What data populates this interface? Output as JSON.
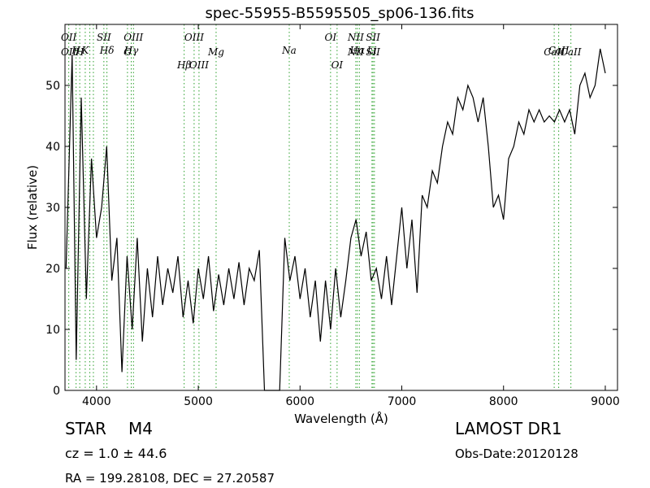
{
  "chart_data": {
    "type": "line",
    "title": "spec-55955-B5595505_sp06-136.fits",
    "xlabel": "Wavelength (Å)",
    "ylabel": "Flux (relative)",
    "xlim": [
      3690,
      9120
    ],
    "ylim": [
      0,
      60
    ],
    "xticks": [
      4000,
      5000,
      6000,
      7000,
      8000,
      9000
    ],
    "yticks": [
      0,
      10,
      20,
      30,
      40,
      50
    ],
    "grid": false,
    "line_color": "#000000",
    "marker_line_color": "#2ca02c",
    "series": [
      {
        "x": [
          3700,
          3760,
          3800,
          3850,
          3900,
          3950,
          4000,
          4050,
          4100,
          4150,
          4200,
          4250,
          4300,
          4350,
          4400,
          4450,
          4500,
          4550,
          4600,
          4650,
          4700,
          4750,
          4800,
          4850,
          4900,
          4950,
          5000,
          5050,
          5100,
          5150,
          5200,
          5250,
          5300,
          5350,
          5400,
          5450,
          5500,
          5550,
          5600,
          5650,
          5700,
          5750,
          5800,
          5850,
          5900,
          5950,
          6000,
          6050,
          6100,
          6150,
          6200,
          6250,
          6300,
          6350,
          6400,
          6450,
          6500,
          6550,
          6600,
          6650,
          6700,
          6750,
          6800,
          6850,
          6900,
          6950,
          7000,
          7050,
          7100,
          7150,
          7200,
          7250,
          7300,
          7350,
          7400,
          7450,
          7500,
          7550,
          7600,
          7650,
          7700,
          7750,
          7800,
          7850,
          7900,
          7950,
          8000,
          8050,
          8100,
          8150,
          8200,
          8250,
          8300,
          8350,
          8400,
          8450,
          8500,
          8550,
          8600,
          8650,
          8700,
          8750,
          8800,
          8850,
          8900,
          8950,
          9000
        ],
        "y": [
          20,
          55,
          5,
          48,
          15,
          38,
          25,
          30,
          40,
          18,
          25,
          3,
          22,
          10,
          25,
          8,
          20,
          12,
          22,
          14,
          20,
          16,
          22,
          12,
          18,
          11,
          20,
          15,
          22,
          13,
          19,
          14,
          20,
          15,
          21,
          14,
          20,
          18,
          23,
          0,
          0,
          0,
          0,
          25,
          18,
          22,
          15,
          20,
          12,
          18,
          8,
          18,
          10,
          20,
          12,
          18,
          25,
          28,
          22,
          26,
          18,
          20,
          15,
          22,
          14,
          22,
          30,
          20,
          28,
          16,
          32,
          30,
          36,
          34,
          40,
          44,
          42,
          48,
          46,
          50,
          48,
          44,
          48,
          40,
          30,
          32,
          28,
          38,
          40,
          44,
          42,
          46,
          44,
          46,
          44,
          45,
          44,
          46,
          44,
          46,
          42,
          50,
          52,
          48,
          50,
          56,
          52
        ]
      }
    ],
    "lines": [
      {
        "x": 3727,
        "top": "OII",
        "bottom": "OII"
      },
      {
        "x": 3799,
        "top": "H",
        "bottom": ""
      },
      {
        "x": 3835,
        "top": "",
        "bottom": "H"
      },
      {
        "x": 3889,
        "top": "K",
        "bottom": ""
      },
      {
        "x": 3934,
        "top": "",
        "bottom": ""
      },
      {
        "x": 3969,
        "top": "",
        "bottom": ""
      },
      {
        "x": 4072,
        "top": "SII",
        "bottom": ""
      },
      {
        "x": 4102,
        "top": "Hδ",
        "bottom": ""
      },
      {
        "x": 4304,
        "top": "",
        "bottom": "G"
      },
      {
        "x": 4341,
        "top": "Hγ",
        "bottom": ""
      },
      {
        "x": 4363,
        "top": "OIII",
        "bottom": ""
      },
      {
        "x": 4861,
        "top": "",
        "bottom": "Hβ"
      },
      {
        "x": 4959,
        "top": "OIII",
        "bottom": ""
      },
      {
        "x": 5007,
        "top": "",
        "bottom": "OIII"
      },
      {
        "x": 5175,
        "top": "",
        "bottom": "Mg"
      },
      {
        "x": 5894,
        "top": "Na",
        "bottom": ""
      },
      {
        "x": 6300,
        "top": "OI",
        "bottom": ""
      },
      {
        "x": 6364,
        "top": "",
        "bottom": "OI"
      },
      {
        "x": 6548,
        "top": "NII",
        "bottom": "NII"
      },
      {
        "x": 6563,
        "top": "Hα",
        "bottom": ""
      },
      {
        "x": 6583,
        "top": "",
        "bottom": ""
      },
      {
        "x": 6707,
        "top": "Li",
        "bottom": ""
      },
      {
        "x": 6717,
        "top": "SII",
        "bottom": "SII"
      },
      {
        "x": 6731,
        "top": "",
        "bottom": ""
      },
      {
        "x": 8498,
        "top": "",
        "bottom": "CaII"
      },
      {
        "x": 8542,
        "top": "CaII",
        "bottom": ""
      },
      {
        "x": 8662,
        "top": "",
        "bottom": "CaII"
      }
    ]
  },
  "info": {
    "class": "STAR",
    "subclass": "M4",
    "survey": "LAMOST DR1",
    "cz": "cz = 1.0 ± 44.6",
    "obs_date": "Obs-Date:20120128",
    "radec": "RA = 199.28108, DEC = 27.20587"
  }
}
